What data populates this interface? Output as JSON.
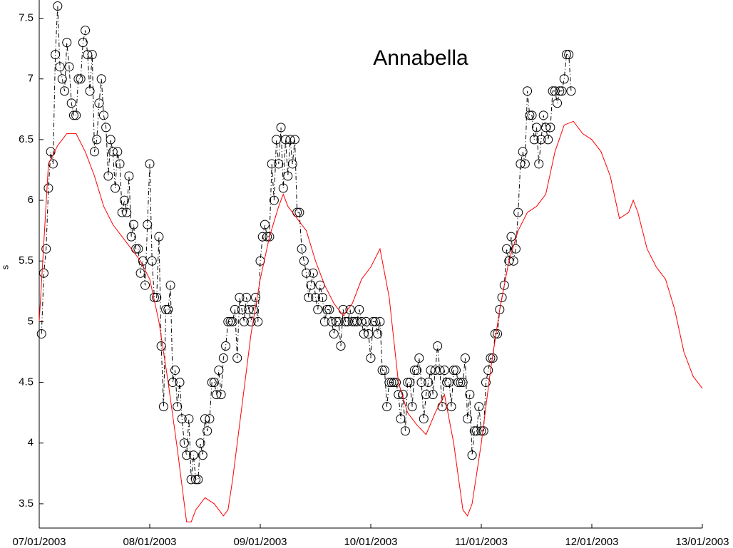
{
  "chart_data": {
    "type": "line",
    "title": "Annabella",
    "y_label": "s",
    "xlim": [
      0,
      144
    ],
    "ylim": [
      3.3,
      7.65
    ],
    "xticks": [
      {
        "value": 0,
        "label": "07/01/2003"
      },
      {
        "value": 24,
        "label": "08/01/2003"
      },
      {
        "value": 48,
        "label": "09/01/2003"
      },
      {
        "value": 72,
        "label": "10/01/2003"
      },
      {
        "value": 96,
        "label": "11/01/2003"
      },
      {
        "value": 120,
        "label": "12/01/2003"
      },
      {
        "value": 144,
        "label": "13/01/2003"
      }
    ],
    "yticks": [
      3.5,
      4,
      4.5,
      5,
      5.5,
      6,
      6.5,
      7,
      7.5
    ],
    "series": [
      {
        "color": "#000000",
        "marker": "circle",
        "line": "dashdot",
        "x": [
          0.5,
          1,
          1.5,
          2,
          2.5,
          3,
          3.5,
          4,
          4.5,
          5,
          5.5,
          6,
          6.5,
          7,
          7.5,
          8,
          8.5,
          9,
          9.5,
          10,
          10.5,
          11,
          11.5,
          12,
          12.5,
          13,
          13.5,
          14,
          14.5,
          15,
          15.5,
          16,
          16.5,
          17,
          17.5,
          18,
          18.5,
          19,
          19.5,
          20,
          20.5,
          21,
          21.5,
          22,
          22.5,
          23,
          23.5,
          24,
          24.5,
          25,
          25.5,
          26,
          26.5,
          27,
          27.5,
          28,
          28.5,
          29,
          29.5,
          30,
          30.5,
          31,
          31.5,
          32,
          32.5,
          33,
          33.5,
          34,
          34.5,
          35,
          35.5,
          36,
          36.5,
          37,
          37.5,
          38,
          38.5,
          39,
          39.5,
          40,
          40.5,
          41,
          41.5,
          42,
          42.5,
          43,
          43.5,
          44,
          44.5,
          45,
          45.5,
          46,
          46.5,
          47,
          47.5,
          48,
          48.5,
          49,
          49.5,
          50,
          50.5,
          51,
          51.5,
          52,
          52.5,
          53,
          53.5,
          54,
          54.5,
          55,
          55.5,
          56,
          56.5,
          57,
          57.5,
          58,
          58.5,
          59,
          59.5,
          60,
          60.5,
          61,
          61.5,
          62,
          62.5,
          63,
          63.5,
          64,
          64.5,
          65,
          65.5,
          66,
          66.5,
          67,
          67.5,
          68,
          68.5,
          69,
          69.5,
          70,
          70.5,
          71,
          71.5,
          72,
          72.5,
          73,
          73.5,
          74,
          74.5,
          75,
          75.5,
          76,
          76.5,
          77,
          77.5,
          78,
          78.5,
          79,
          79.5,
          80,
          80.5,
          81,
          81.5,
          82,
          82.5,
          83,
          83.5,
          84,
          84.5,
          85,
          85.5,
          86,
          86.5,
          87,
          87.5,
          88,
          88.5,
          89,
          89.5,
          90,
          90.5,
          91,
          91.5,
          92,
          92.5,
          93,
          93.5,
          94,
          94.5,
          95,
          95.5,
          96,
          96.5,
          97,
          97.5,
          98,
          98.5,
          99,
          99.5,
          100,
          100.5,
          101,
          101.5,
          102,
          102.5,
          103,
          103.5,
          104,
          104.5,
          105,
          105.5,
          106,
          106.5,
          107,
          107.5,
          108,
          108.5,
          109,
          109.5,
          110,
          110.5,
          111,
          111.5,
          112,
          112.5,
          113,
          113.5,
          114,
          114.5,
          115,
          115.5
        ],
        "values": [
          4.9,
          5.4,
          5.6,
          6.1,
          6.4,
          6.3,
          7.2,
          7.6,
          7.1,
          7.0,
          6.9,
          7.3,
          7.1,
          6.8,
          6.7,
          6.7,
          7.0,
          7.0,
          7.3,
          7.4,
          7.2,
          6.9,
          7.2,
          6.4,
          6.5,
          6.8,
          7.0,
          6.7,
          6.6,
          6.2,
          6.5,
          6.4,
          6.1,
          6.4,
          6.3,
          5.9,
          6.0,
          5.9,
          6.2,
          5.7,
          5.8,
          5.6,
          5.6,
          5.4,
          5.5,
          5.3,
          5.8,
          6.3,
          5.5,
          5.2,
          5.2,
          5.7,
          4.8,
          4.3,
          5.1,
          5.1,
          5.3,
          4.5,
          4.6,
          4.3,
          4.5,
          4.2,
          4.0,
          3.9,
          4.2,
          3.7,
          3.9,
          3.7,
          3.7,
          4.0,
          3.9,
          4.2,
          4.1,
          4.2,
          4.5,
          4.5,
          4.4,
          4.6,
          4.4,
          4.7,
          4.8,
          5.0,
          5.0,
          5.0,
          5.1,
          4.7,
          5.2,
          5.1,
          5.0,
          5.2,
          5.1,
          5.0,
          5.1,
          5.2,
          5.0,
          5.5,
          5.7,
          5.8,
          5.7,
          5.7,
          6.3,
          6.0,
          6.5,
          6.3,
          6.6,
          6.1,
          6.5,
          6.2,
          6.5,
          6.3,
          6.5,
          5.9,
          5.9,
          5.6,
          5.5,
          5.4,
          5.2,
          5.3,
          5.4,
          5.2,
          5.1,
          5.3,
          5.2,
          5.0,
          5.1,
          5.1,
          5.0,
          4.9,
          5.0,
          5.0,
          4.8,
          5.1,
          5.0,
          5.0,
          5.1,
          5.0,
          5.0,
          5.0,
          5.1,
          5.0,
          4.9,
          5.0,
          4.9,
          4.7,
          5.0,
          5.0,
          4.9,
          5.0,
          4.6,
          4.6,
          4.3,
          4.5,
          4.5,
          4.5,
          4.5,
          4.4,
          4.2,
          4.4,
          4.1,
          4.5,
          4.5,
          4.3,
          4.6,
          4.6,
          4.7,
          4.5,
          4.2,
          4.4,
          4.5,
          4.6,
          4.4,
          4.6,
          4.8,
          4.6,
          4.3,
          4.6,
          4.5,
          4.5,
          4.3,
          4.6,
          4.6,
          4.5,
          4.5,
          4.5,
          4.7,
          4.2,
          4.4,
          3.9,
          4.1,
          4.1,
          4.3,
          4.1,
          4.1,
          4.5,
          4.6,
          4.7,
          4.7,
          4.9,
          4.9,
          5.1,
          5.2,
          5.3,
          5.6,
          5.5,
          5.7,
          5.5,
          5.6,
          5.9,
          6.3,
          6.4,
          6.3,
          6.9,
          6.7,
          6.7,
          6.5,
          6.6,
          6.3,
          6.5,
          6.7,
          6.6,
          6.5,
          6.6,
          6.9,
          6.9,
          6.8,
          6.9,
          6.9,
          7.0,
          7.2,
          7.2,
          6.9
        ]
      },
      {
        "color": "#ff0000",
        "line": "solid",
        "x": [
          0,
          2,
          4,
          6,
          8,
          10,
          12,
          14,
          16,
          18,
          20,
          22,
          24,
          26,
          28,
          30,
          32,
          33,
          34,
          36,
          38,
          40,
          41,
          42,
          44,
          46,
          48,
          50,
          52,
          53,
          54,
          56,
          58,
          60,
          62,
          64,
          66,
          68,
          70,
          72,
          74,
          76,
          78,
          80,
          82,
          84,
          86,
          88,
          90,
          92,
          93,
          94,
          96,
          98,
          100,
          102,
          104,
          106,
          108,
          110,
          112,
          114,
          116,
          118,
          120,
          122,
          124,
          126,
          128,
          129,
          130,
          132,
          134,
          136,
          138,
          140,
          142,
          144
        ],
        "values": [
          5.0,
          6.3,
          6.45,
          6.55,
          6.55,
          6.4,
          6.2,
          5.95,
          5.8,
          5.7,
          5.6,
          5.5,
          5.35,
          5.0,
          4.5,
          3.95,
          3.35,
          3.35,
          3.45,
          3.55,
          3.5,
          3.4,
          3.45,
          3.7,
          4.3,
          4.9,
          5.35,
          5.7,
          5.95,
          6.05,
          5.95,
          5.85,
          5.75,
          5.5,
          5.3,
          5.15,
          5.05,
          5.15,
          5.35,
          5.45,
          5.6,
          5.2,
          4.5,
          4.25,
          4.15,
          4.07,
          4.25,
          4.4,
          4.0,
          3.45,
          3.4,
          3.5,
          4.0,
          4.6,
          5.1,
          5.5,
          5.75,
          5.9,
          5.95,
          6.05,
          6.4,
          6.62,
          6.65,
          6.55,
          6.5,
          6.4,
          6.2,
          5.85,
          5.9,
          6.0,
          5.9,
          5.6,
          5.45,
          5.35,
          5.1,
          4.75,
          4.55,
          4.45
        ]
      }
    ]
  }
}
